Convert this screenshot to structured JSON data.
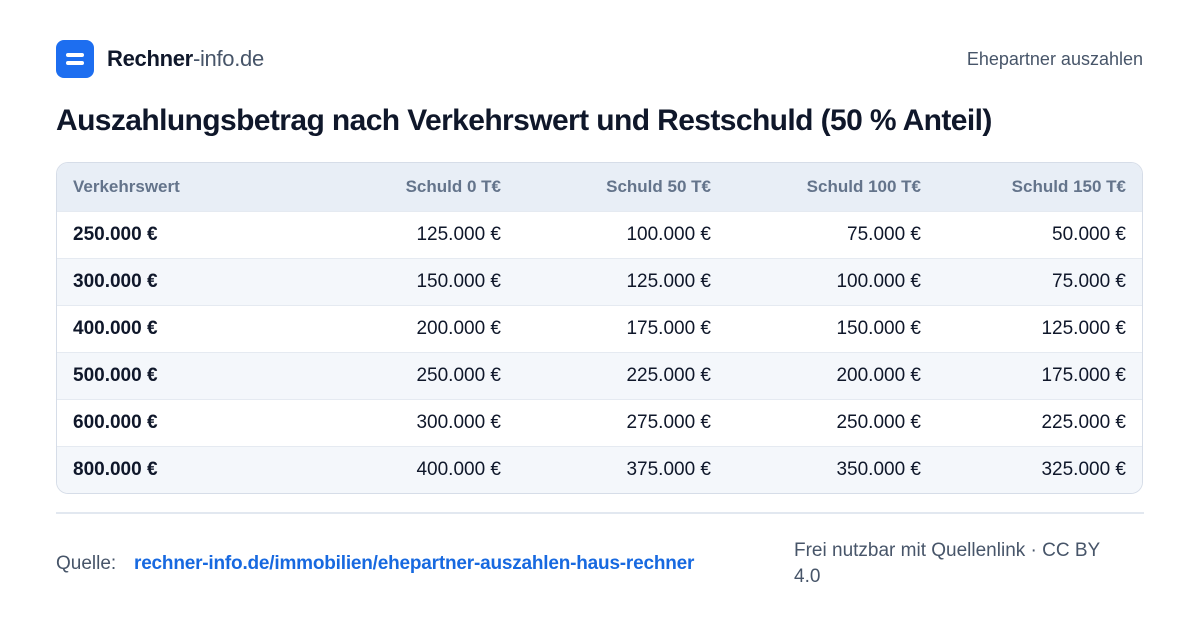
{
  "header": {
    "brand_bold": "Rechner",
    "brand_light": "-info.de",
    "nav_link": "Ehepartner auszahlen"
  },
  "title": "Auszahlungsbetrag nach Verkehrswert und Restschuld (50 % Anteil)",
  "table": {
    "columns": [
      "Verkehrswert",
      "Schuld 0 T€",
      "Schuld 50 T€",
      "Schuld 100 T€",
      "Schuld 150 T€"
    ],
    "rows": [
      [
        "250.000 €",
        "125.000 €",
        "100.000 €",
        "75.000 €",
        "50.000 €"
      ],
      [
        "300.000 €",
        "150.000 €",
        "125.000 €",
        "100.000 €",
        "75.000 €"
      ],
      [
        "400.000 €",
        "200.000 €",
        "175.000 €",
        "150.000 €",
        "125.000 €"
      ],
      [
        "500.000 €",
        "250.000 €",
        "225.000 €",
        "200.000 €",
        "175.000 €"
      ],
      [
        "600.000 €",
        "300.000 €",
        "275.000 €",
        "250.000 €",
        "225.000 €"
      ],
      [
        "800.000 €",
        "400.000 €",
        "375.000 €",
        "350.000 €",
        "325.000 €"
      ]
    ]
  },
  "footer": {
    "source_label": "Quelle:",
    "source_link": "rechner-info.de/immobilien/ehepartner-auszahlen-haus-rechner",
    "license": "Frei nutzbar mit Quellenlink · CC BY 4.0"
  },
  "colors": {
    "accent": "#1d6ef0",
    "link": "#1769e0",
    "header_bg": "#e8eef6",
    "stripe_bg": "#f4f7fb"
  },
  "icons": {
    "logo": "rechner-info-logo-icon"
  }
}
